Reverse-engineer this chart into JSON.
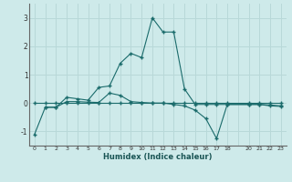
{
  "xlabel": "Humidex (Indice chaleur)",
  "bg_color": "#ceeaea",
  "grid_color": "#b8d8d8",
  "line_color": "#1a6b6b",
  "series1_x": [
    0,
    1,
    2,
    3,
    4,
    5,
    6,
    7,
    8,
    9,
    10,
    11,
    12,
    13,
    14,
    15,
    16,
    17,
    18,
    20,
    21,
    22,
    23
  ],
  "series1_y": [
    0.0,
    0.0,
    0.0,
    0.0,
    0.0,
    0.0,
    0.0,
    0.0,
    0.0,
    0.0,
    0.0,
    0.0,
    0.0,
    0.0,
    0.0,
    0.0,
    0.0,
    0.0,
    0.0,
    0.0,
    0.0,
    0.0,
    0.0
  ],
  "series2_x": [
    0,
    1,
    2,
    3,
    4,
    5,
    6,
    7,
    8,
    9,
    10,
    11,
    12,
    13,
    14,
    15,
    16,
    17,
    18,
    20,
    21,
    22,
    23
  ],
  "series2_y": [
    -1.1,
    -0.15,
    -0.15,
    0.05,
    0.05,
    0.03,
    0.02,
    0.35,
    0.27,
    0.05,
    0.02,
    0.0,
    0.0,
    -0.05,
    -0.1,
    -0.25,
    -0.55,
    -1.25,
    -0.05,
    -0.05,
    -0.05,
    -0.07,
    -0.1
  ],
  "series3_x": [
    1,
    2,
    3,
    4,
    5,
    6,
    7,
    8,
    9,
    10,
    11,
    12,
    13,
    14,
    15,
    16,
    17,
    18,
    20,
    21,
    22,
    23
  ],
  "series3_y": [
    -0.15,
    -0.15,
    0.2,
    0.15,
    0.1,
    0.55,
    0.6,
    1.4,
    1.75,
    1.6,
    3.0,
    2.5,
    2.5,
    0.5,
    -0.05,
    -0.05,
    -0.05,
    -0.05,
    -0.05,
    -0.05,
    -0.1,
    -0.12
  ],
  "ylim": [
    -1.5,
    3.5
  ],
  "yticks": [
    -1,
    0,
    1,
    2,
    3
  ],
  "xtick_positions": [
    0,
    1,
    2,
    3,
    4,
    5,
    6,
    7,
    8,
    9,
    10,
    11,
    12,
    13,
    14,
    15,
    16,
    17,
    18,
    19,
    20,
    21,
    22,
    23
  ],
  "xtick_labels": [
    "0",
    "1",
    "2",
    "3",
    "4",
    "5",
    "6",
    "7",
    "8",
    "9",
    "10",
    "11",
    "12",
    "13",
    "14",
    "15",
    "16",
    "17",
    "18",
    "",
    "20",
    "21",
    "22",
    "23"
  ],
  "marker": "+"
}
